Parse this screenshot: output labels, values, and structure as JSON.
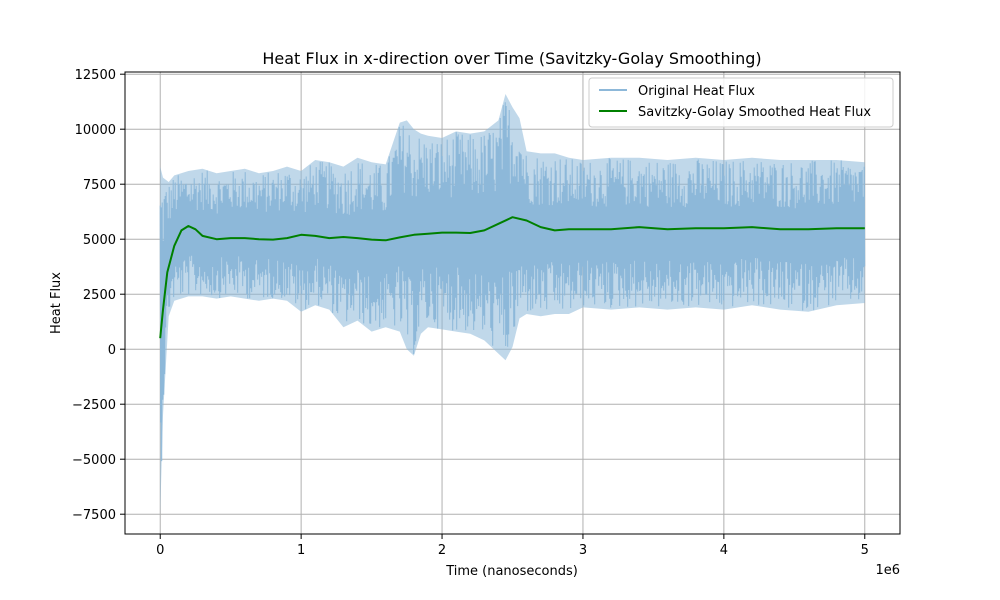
{
  "chart_data": {
    "type": "line",
    "title": "Heat Flux in x-direction over Time (Savitzky-Golay Smoothing)",
    "xlabel": "Time (nanoseconds)",
    "ylabel": "Heat Flux",
    "x_offset_label": "1e6",
    "xlim": [
      -250000,
      5250000
    ],
    "ylim": [
      -8400,
      12600
    ],
    "x_ticks": [
      0,
      1000000,
      2000000,
      3000000,
      4000000,
      5000000
    ],
    "x_tick_labels": [
      "0",
      "1",
      "2",
      "3",
      "4",
      "5"
    ],
    "y_ticks": [
      -7500,
      -5000,
      -2500,
      0,
      2500,
      5000,
      7500,
      10000,
      12500
    ],
    "y_tick_labels": [
      "−7500",
      "−5000",
      "−2500",
      "0",
      "2500",
      "5000",
      "7500",
      "10000",
      "12500"
    ],
    "grid": true,
    "legend": "top-right",
    "colors": {
      "original": "#8db8d9",
      "smoothed": "#008000"
    },
    "series": [
      {
        "name": "Original Heat Flux",
        "style": "noisy-band",
        "x": [
          0,
          20000,
          60000,
          100000,
          200000,
          300000,
          400000,
          500000,
          600000,
          700000,
          800000,
          900000,
          1000000,
          1100000,
          1200000,
          1300000,
          1400000,
          1500000,
          1600000,
          1700000,
          1750000,
          1800000,
          1850000,
          1900000,
          2000000,
          2100000,
          2200000,
          2300000,
          2400000,
          2450000,
          2500000,
          2550000,
          2600000,
          2700000,
          2800000,
          2900000,
          3000000,
          3200000,
          3400000,
          3600000,
          3800000,
          4000000,
          4200000,
          4400000,
          4600000,
          4800000,
          5000000
        ],
        "upper": [
          8300,
          7800,
          7600,
          7900,
          8100,
          8200,
          8000,
          8100,
          8200,
          8000,
          8100,
          8300,
          8100,
          8600,
          8500,
          8300,
          8700,
          8500,
          8400,
          10300,
          10400,
          10000,
          9800,
          9700,
          9600,
          9900,
          9800,
          9900,
          10400,
          11600,
          11000,
          10500,
          9000,
          8900,
          8900,
          8700,
          8600,
          8700,
          8700,
          8600,
          8700,
          8600,
          8700,
          8600,
          8600,
          8600,
          8500
        ],
        "lower": [
          -7500,
          -3000,
          1500,
          2200,
          2400,
          2400,
          2300,
          2400,
          2300,
          2200,
          2300,
          2200,
          1700,
          2000,
          1800,
          1000,
          1300,
          800,
          1000,
          800,
          0,
          -300,
          700,
          1000,
          900,
          800,
          700,
          400,
          -200,
          -500,
          100,
          1400,
          1600,
          1500,
          1600,
          1600,
          1900,
          1800,
          1900,
          1800,
          1900,
          1800,
          2000,
          1800,
          1700,
          2000,
          2100
        ]
      },
      {
        "name": "Savitzky-Golay Smoothed Heat Flux",
        "x": [
          0,
          20000,
          50000,
          100000,
          150000,
          200000,
          250000,
          300000,
          400000,
          500000,
          600000,
          700000,
          800000,
          900000,
          1000000,
          1100000,
          1200000,
          1300000,
          1400000,
          1500000,
          1600000,
          1700000,
          1800000,
          1900000,
          2000000,
          2100000,
          2200000,
          2300000,
          2400000,
          2500000,
          2600000,
          2700000,
          2800000,
          2900000,
          3000000,
          3200000,
          3400000,
          3600000,
          3800000,
          4000000,
          4200000,
          4400000,
          4600000,
          4800000,
          5000000
        ],
        "values": [
          500,
          1800,
          3500,
          4700,
          5400,
          5600,
          5450,
          5150,
          5000,
          5050,
          5050,
          5000,
          4980,
          5050,
          5200,
          5150,
          5050,
          5100,
          5050,
          4980,
          4950,
          5080,
          5200,
          5250,
          5300,
          5300,
          5280,
          5400,
          5700,
          6000,
          5850,
          5550,
          5400,
          5450,
          5450,
          5450,
          5550,
          5450,
          5500,
          5500,
          5550,
          5450,
          5450,
          5500,
          5500
        ]
      }
    ]
  }
}
